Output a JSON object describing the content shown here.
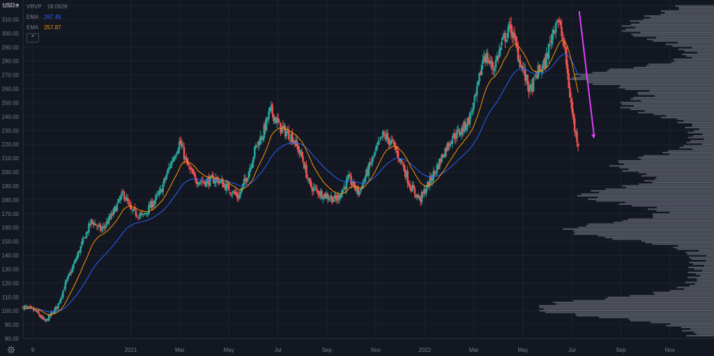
{
  "currency_label": "USD ▾",
  "legend": {
    "vrvp": {
      "name": "VRVP",
      "value": "18.092K"
    },
    "ema1": {
      "name": "EMA",
      "value": "267.45",
      "color": "#2962ff"
    },
    "ema2": {
      "name": "EMA",
      "value": "257.87",
      "color": "#ff9800"
    },
    "collapse_glyph": "⌃"
  },
  "colors": {
    "background": "#131722",
    "up": "#26a69a",
    "down": "#ef5350",
    "ema_fast": "#ff9800",
    "ema_slow": "#2962ff",
    "volume_profile": "#5d606b",
    "arrow": "#e040fb",
    "grid": "#1e222d",
    "text": "#787b86"
  },
  "icons": {
    "settings": "gear-icon"
  },
  "chart_data": {
    "type": "candlestick",
    "title": "",
    "ylim": [
      80,
      320
    ],
    "y_ticks": [
      "80.00",
      "90.00",
      "100.00",
      "110.00",
      "120.00",
      "130.00",
      "140.00",
      "150.00",
      "160.00",
      "170.00",
      "180.00",
      "190.00",
      "200.00",
      "210.00",
      "220.00",
      "230.00",
      "240.00",
      "250.00",
      "260.00",
      "270.00",
      "280.00",
      "290.00",
      "300.00",
      "310.00",
      "320.00"
    ],
    "x_ticks": [
      "9",
      "2021",
      "Mar",
      "May",
      "Jul",
      "Sep",
      "Nov",
      "2022",
      "Mar",
      "May",
      "Jul",
      "Sep",
      "Nov"
    ],
    "x_ticks_start_month": 8,
    "x_tick_months": [
      8,
      12,
      14,
      16,
      18,
      20,
      22,
      24,
      26,
      28,
      30,
      32,
      34
    ],
    "x_range_months": [
      7.6,
      35.8
    ],
    "price_anchors": [
      [
        7.6,
        103
      ],
      [
        8.1,
        100
      ],
      [
        8.5,
        92
      ],
      [
        9.0,
        103
      ],
      [
        9.3,
        118
      ],
      [
        9.6,
        130
      ],
      [
        10.0,
        148
      ],
      [
        10.4,
        165
      ],
      [
        10.8,
        158
      ],
      [
        11.2,
        168
      ],
      [
        11.7,
        185
      ],
      [
        12.0,
        172
      ],
      [
        12.5,
        168
      ],
      [
        12.9,
        178
      ],
      [
        13.2,
        185
      ],
      [
        13.6,
        205
      ],
      [
        14.0,
        222
      ],
      [
        14.3,
        205
      ],
      [
        14.6,
        195
      ],
      [
        15.0,
        193
      ],
      [
        15.5,
        195
      ],
      [
        16.0,
        188
      ],
      [
        16.4,
        182
      ],
      [
        16.8,
        200
      ],
      [
        17.1,
        218
      ],
      [
        17.4,
        228
      ],
      [
        17.7,
        245
      ],
      [
        18.1,
        232
      ],
      [
        18.6,
        225
      ],
      [
        19.0,
        210
      ],
      [
        19.3,
        190
      ],
      [
        19.7,
        185
      ],
      [
        20.1,
        182
      ],
      [
        20.4,
        180
      ],
      [
        20.9,
        195
      ],
      [
        21.3,
        185
      ],
      [
        21.6,
        198
      ],
      [
        22.0,
        215
      ],
      [
        22.3,
        227
      ],
      [
        22.7,
        220
      ],
      [
        23.1,
        205
      ],
      [
        23.4,
        190
      ],
      [
        23.8,
        180
      ],
      [
        24.1,
        190
      ],
      [
        24.4,
        200
      ],
      [
        24.8,
        215
      ],
      [
        25.1,
        225
      ],
      [
        25.5,
        230
      ],
      [
        25.8,
        238
      ],
      [
        26.1,
        255
      ],
      [
        26.4,
        285
      ],
      [
        26.8,
        275
      ],
      [
        27.2,
        295
      ],
      [
        27.5,
        305
      ],
      [
        27.8,
        285
      ],
      [
        28.1,
        268
      ],
      [
        28.3,
        258
      ],
      [
        28.6,
        272
      ],
      [
        28.9,
        278
      ],
      [
        29.2,
        300
      ],
      [
        29.4,
        312
      ],
      [
        29.7,
        290
      ],
      [
        29.9,
        258
      ],
      [
        30.1,
        232
      ],
      [
        30.3,
        218
      ]
    ],
    "series": [
      {
        "name": "EMA",
        "value": "267.45",
        "role": "slow",
        "period": 50
      },
      {
        "name": "EMA",
        "value": "257.87",
        "role": "fast",
        "period": 20
      }
    ],
    "volume_profile": {
      "peaks": [
        [
          102,
          0.95
        ],
        [
          158,
          0.72
        ],
        [
          183,
          0.64
        ],
        [
          205,
          0.45
        ],
        [
          248,
          0.4
        ],
        [
          268,
          0.7
        ],
        [
          300,
          0.3
        ],
        [
          310,
          0.22
        ]
      ],
      "max_fraction_of_width": 0.95
    },
    "arrow": {
      "from": [
        30.3,
        316
      ],
      "to": [
        30.9,
        224
      ]
    },
    "grid": true
  }
}
